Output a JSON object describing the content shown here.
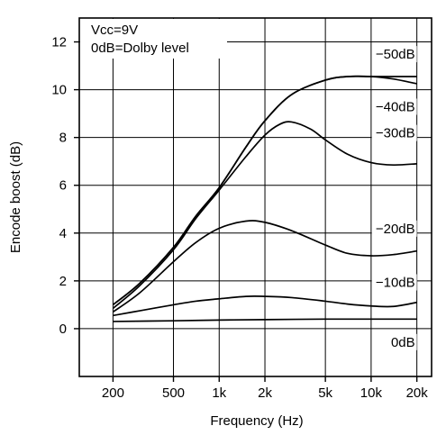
{
  "chart_data": {
    "type": "line",
    "xlabel": "Frequency (Hz)",
    "ylabel": "Encode boost (dB)",
    "xscale": "log",
    "xlim": [
      120,
      25000
    ],
    "ylim": [
      -2,
      13
    ],
    "grid": true,
    "x_ticks": [
      {
        "value": 200,
        "label": "200"
      },
      {
        "value": 500,
        "label": "500"
      },
      {
        "value": 1000,
        "label": "1k"
      },
      {
        "value": 2000,
        "label": "2k"
      },
      {
        "value": 5000,
        "label": "5k"
      },
      {
        "value": 10000,
        "label": "10k"
      },
      {
        "value": 20000,
        "label": "20k"
      }
    ],
    "y_ticks": [
      {
        "value": 0,
        "label": "0"
      },
      {
        "value": 2,
        "label": "2"
      },
      {
        "value": 4,
        "label": "4"
      },
      {
        "value": 6,
        "label": "6"
      },
      {
        "value": 8,
        "label": "8"
      },
      {
        "value": 10,
        "label": "10"
      },
      {
        "value": 12,
        "label": "12"
      }
    ],
    "annotation_lines": [
      "Vcc=9V",
      "0dB=Dolby level"
    ],
    "series": [
      {
        "name": "0dB",
        "label_y": -0.75,
        "x": [
          200,
          500,
          1000,
          2000,
          5000,
          10000,
          20000
        ],
        "values": [
          0.3,
          0.33,
          0.36,
          0.38,
          0.4,
          0.4,
          0.4
        ]
      },
      {
        "name": "−10dB",
        "label_y": 1.75,
        "x": [
          200,
          300,
          500,
          700,
          1000,
          1500,
          2000,
          3000,
          5000,
          7000,
          10000,
          14000,
          20000
        ],
        "values": [
          0.55,
          0.75,
          1.0,
          1.15,
          1.25,
          1.35,
          1.35,
          1.3,
          1.15,
          1.03,
          0.95,
          0.93,
          1.1
        ]
      },
      {
        "name": "−20dB",
        "label_y": 4.0,
        "x": [
          200,
          300,
          500,
          700,
          1000,
          1500,
          2000,
          3000,
          5000,
          7000,
          10000,
          14000,
          20000
        ],
        "values": [
          0.7,
          1.5,
          2.8,
          3.6,
          4.2,
          4.5,
          4.45,
          4.1,
          3.5,
          3.15,
          3.05,
          3.1,
          3.25
        ]
      },
      {
        "name": "−30dB",
        "label_y": 8.0,
        "x": [
          200,
          300,
          500,
          700,
          1000,
          1500,
          2000,
          2500,
          3000,
          4000,
          5000,
          7000,
          10000,
          14000,
          20000
        ],
        "values": [
          0.85,
          1.8,
          3.3,
          4.6,
          5.8,
          7.2,
          8.1,
          8.55,
          8.65,
          8.35,
          7.9,
          7.3,
          6.95,
          6.85,
          6.9
        ]
      },
      {
        "name": "−40dB",
        "label_y": 9.1,
        "x": [
          200,
          300,
          500,
          700,
          1000,
          1500,
          2000,
          3000,
          5000,
          7000,
          10000,
          14000,
          20000
        ],
        "values": [
          1.0,
          1.9,
          3.4,
          4.7,
          5.9,
          7.6,
          8.7,
          9.8,
          10.4,
          10.55,
          10.55,
          10.45,
          10.25
        ]
      },
      {
        "name": "−50dB",
        "label_y": 11.3,
        "x": [
          200,
          300,
          500,
          700,
          1000,
          1500,
          2000,
          3000,
          5000,
          7000,
          10000,
          14000,
          20000
        ],
        "values": [
          1.0,
          1.9,
          3.4,
          4.7,
          5.9,
          7.6,
          8.7,
          9.8,
          10.4,
          10.55,
          10.55,
          10.55,
          10.55
        ]
      }
    ]
  }
}
